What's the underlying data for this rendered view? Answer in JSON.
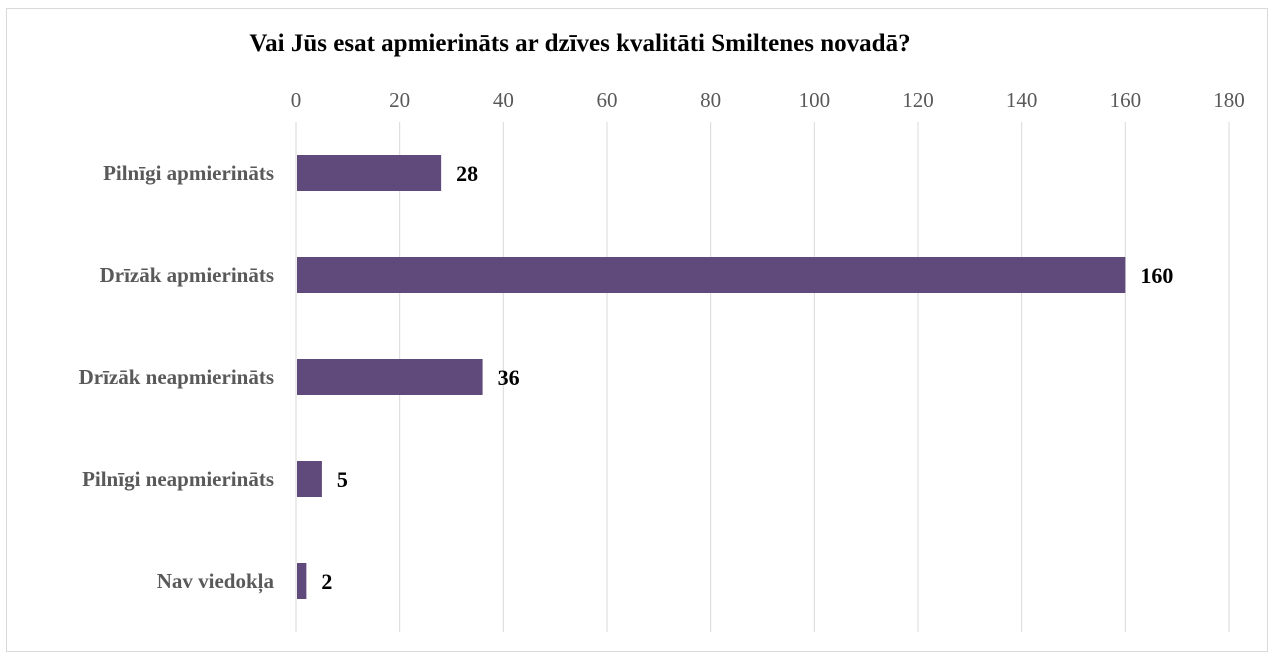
{
  "chart_data": {
    "type": "bar",
    "orientation": "horizontal",
    "title": "Vai Jūs esat apmierināts ar dzīves kvalitāti Smiltenes novadā?",
    "categories": [
      "Pilnīgi apmierināts",
      "Drīzāk apmierināts",
      "Drīzāk neapmierināts",
      "Pilnīgi neapmierināts",
      "Nav viedokļa"
    ],
    "values": [
      28,
      160,
      36,
      5,
      2
    ],
    "data_labels": [
      "28",
      "160",
      "36",
      "5",
      "2"
    ],
    "xlim": [
      0,
      180
    ],
    "xticks": [
      0,
      20,
      40,
      60,
      80,
      100,
      120,
      140,
      160,
      180
    ],
    "xtick_labels": [
      "0",
      "20",
      "40",
      "60",
      "80",
      "100",
      "120",
      "140",
      "160",
      "180"
    ],
    "x_axis_position": "top",
    "grid": true,
    "legend": "none",
    "bar_color": "#604a7b",
    "grid_color": "#d9d9d9"
  }
}
